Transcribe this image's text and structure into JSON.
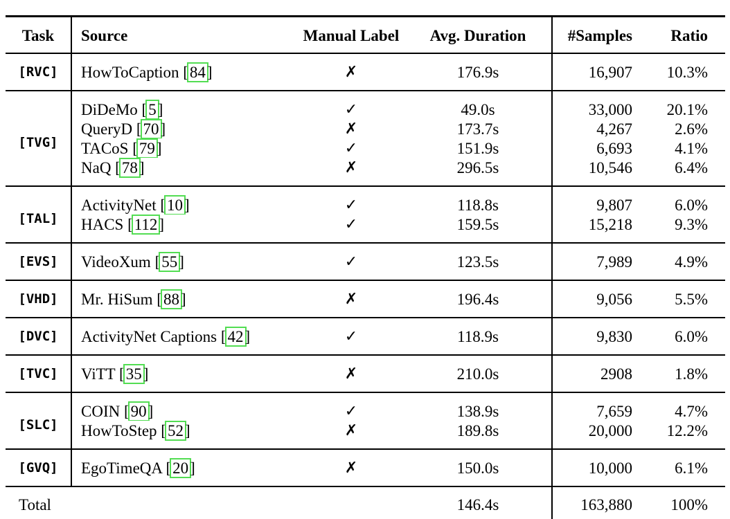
{
  "table": {
    "columns": {
      "task": "Task",
      "source": "Source",
      "manual_label": "Manual Label",
      "avg_duration": "Avg. Duration",
      "samples": "#Samples",
      "ratio": "Ratio"
    },
    "glyphs": {
      "check": "✓",
      "cross": "✗"
    },
    "colors": {
      "citation_border": "#52dd52",
      "text": "#000000",
      "background": "#ffffff",
      "rule": "#000000"
    },
    "sections": [
      {
        "task": "[RVC]",
        "rows": [
          {
            "source": "HowToCaption",
            "cite": "84",
            "manual_label": "✗",
            "avg_duration": "176.9s",
            "samples": "16,907",
            "ratio": "10.3%"
          }
        ]
      },
      {
        "task": "[TVG]",
        "rows": [
          {
            "source": "DiDeMo",
            "cite": "5",
            "manual_label": "✓",
            "avg_duration": "49.0s",
            "samples": "33,000",
            "ratio": "20.1%"
          },
          {
            "source": "QueryD",
            "cite": "70",
            "manual_label": "✗",
            "avg_duration": "173.7s",
            "samples": "4,267",
            "ratio": "2.6%"
          },
          {
            "source": "TACoS",
            "cite": "79",
            "manual_label": "✓",
            "avg_duration": "151.9s",
            "samples": "6,693",
            "ratio": "4.1%"
          },
          {
            "source": "NaQ",
            "cite": "78",
            "manual_label": "✗",
            "avg_duration": "296.5s",
            "samples": "10,546",
            "ratio": "6.4%"
          }
        ]
      },
      {
        "task": "[TAL]",
        "rows": [
          {
            "source": "ActivityNet",
            "cite": "10",
            "manual_label": "✓",
            "avg_duration": "118.8s",
            "samples": "9,807",
            "ratio": "6.0%"
          },
          {
            "source": "HACS",
            "cite": "112",
            "manual_label": "✓",
            "avg_duration": "159.5s",
            "samples": "15,218",
            "ratio": "9.3%"
          }
        ]
      },
      {
        "task": "[EVS]",
        "rows": [
          {
            "source": "VideoXum",
            "cite": "55",
            "manual_label": "✓",
            "avg_duration": "123.5s",
            "samples": "7,989",
            "ratio": "4.9%"
          }
        ]
      },
      {
        "task": "[VHD]",
        "rows": [
          {
            "source": "Mr. HiSum",
            "cite": "88",
            "manual_label": "✗",
            "avg_duration": "196.4s",
            "samples": "9,056",
            "ratio": "5.5%"
          }
        ]
      },
      {
        "task": "[DVC]",
        "rows": [
          {
            "source": "ActivityNet Captions",
            "cite": "42",
            "manual_label": "✓",
            "avg_duration": "118.9s",
            "samples": "9,830",
            "ratio": "6.0%"
          }
        ]
      },
      {
        "task": "[TVC]",
        "rows": [
          {
            "source": "ViTT",
            "cite": "35",
            "manual_label": "✗",
            "avg_duration": "210.0s",
            "samples": "2908",
            "ratio": "1.8%"
          }
        ]
      },
      {
        "task": "[SLC]",
        "rows": [
          {
            "source": "COIN",
            "cite": "90",
            "manual_label": "✓",
            "avg_duration": "138.9s",
            "samples": "7,659",
            "ratio": "4.7%"
          },
          {
            "source": "HowToStep",
            "cite": "52",
            "manual_label": "✗",
            "avg_duration": "189.8s",
            "samples": "20,000",
            "ratio": "12.2%"
          }
        ]
      },
      {
        "task": "[GVQ]",
        "rows": [
          {
            "source": "EgoTimeQA",
            "cite": "20",
            "manual_label": "✗",
            "avg_duration": "150.0s",
            "samples": "10,000",
            "ratio": "6.1%"
          }
        ]
      }
    ],
    "total": {
      "label": "Total",
      "avg_duration": "146.4s",
      "samples": "163,880",
      "ratio": "100%"
    }
  }
}
